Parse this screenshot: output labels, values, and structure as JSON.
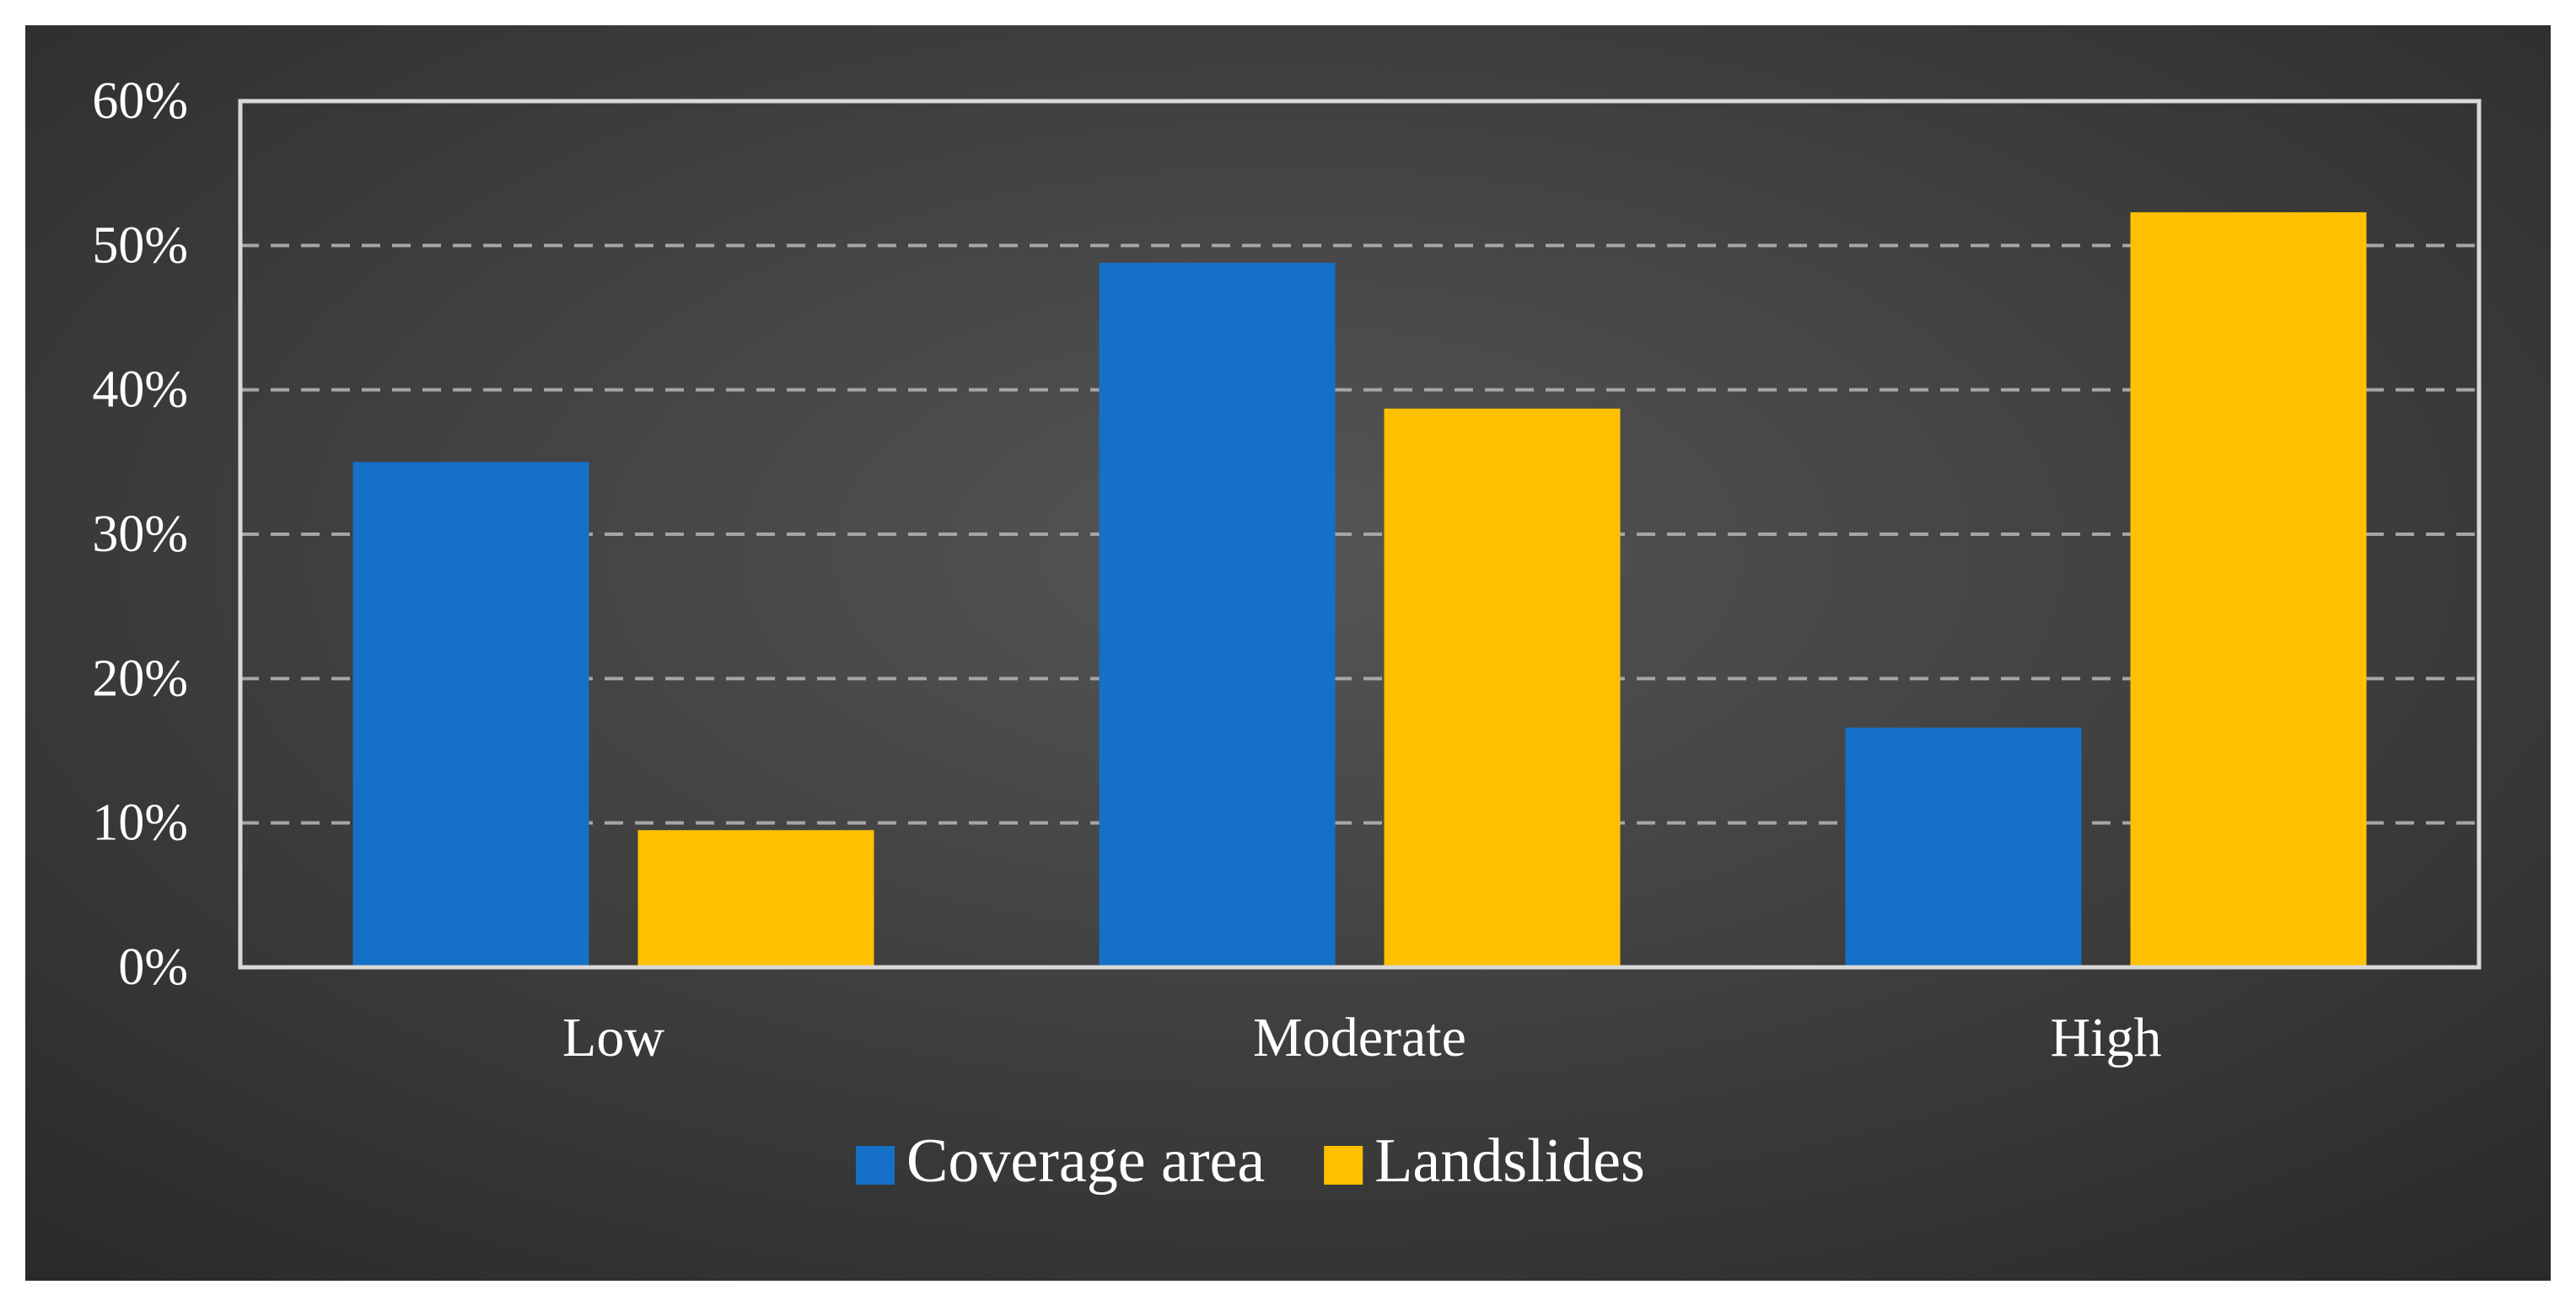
{
  "chart_data": {
    "type": "bar",
    "title": "",
    "xlabel": "",
    "ylabel": "",
    "categories": [
      "Low",
      "Moderate",
      "High"
    ],
    "series": [
      {
        "name": "Coverage area",
        "values": [
          35,
          48.8,
          16.6
        ],
        "color": "#1570c7"
      },
      {
        "name": "Landslides",
        "values": [
          9.5,
          38.7,
          52.3
        ],
        "color": "#ffc000"
      }
    ],
    "ylim": [
      0,
      60
    ],
    "yticks": [
      0,
      10,
      20,
      30,
      40,
      50,
      60
    ],
    "ytick_labels": [
      "0%",
      "10%",
      "20%",
      "30%",
      "40%",
      "50%",
      "60%"
    ],
    "y_unit": "%",
    "grid": true,
    "grid_style": "dashed",
    "legend_position": "bottom-center"
  },
  "colors": {
    "background_center": "#555555",
    "background_edge": "#2a2a2a",
    "axis": "#d9d9d9",
    "gridline": "#a6a6a6",
    "text": "#ffffff"
  }
}
